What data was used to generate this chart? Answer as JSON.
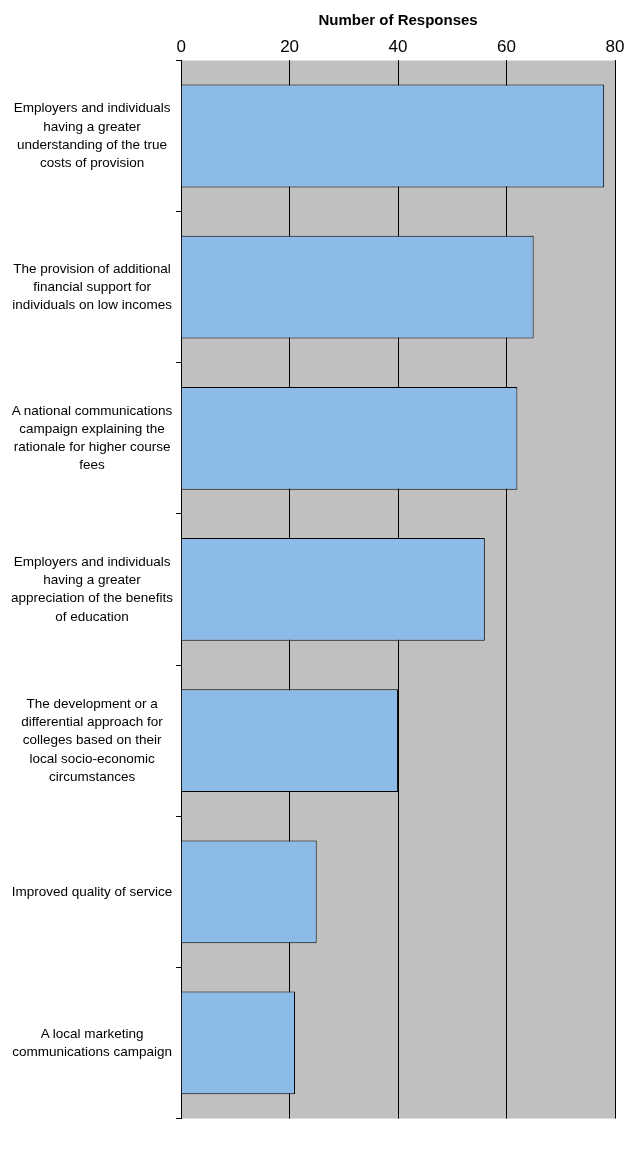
{
  "chart_data": {
    "type": "bar",
    "orientation": "horizontal",
    "xlabel": "Number of Responses",
    "categories": [
      "Employers and individuals having a greater understanding of the true costs of provision",
      "The provision of additional financial support for individuals on low incomes",
      "A national communications campaign explaining the rationale for higher course fees",
      "Employers and individuals having a greater appreciation of the benefits of education",
      "The development or a differential approach for colleges based on their local socio-economic circumstances",
      "Improved quality of service",
      "A local marketing communications campaign"
    ],
    "values": [
      78,
      65,
      62,
      56,
      40,
      25,
      21
    ],
    "color": "#8dbbe8",
    "xlim": [
      0,
      80
    ],
    "xticks": [
      0,
      20,
      40,
      60,
      80
    ],
    "grid": "x",
    "legend": false
  }
}
